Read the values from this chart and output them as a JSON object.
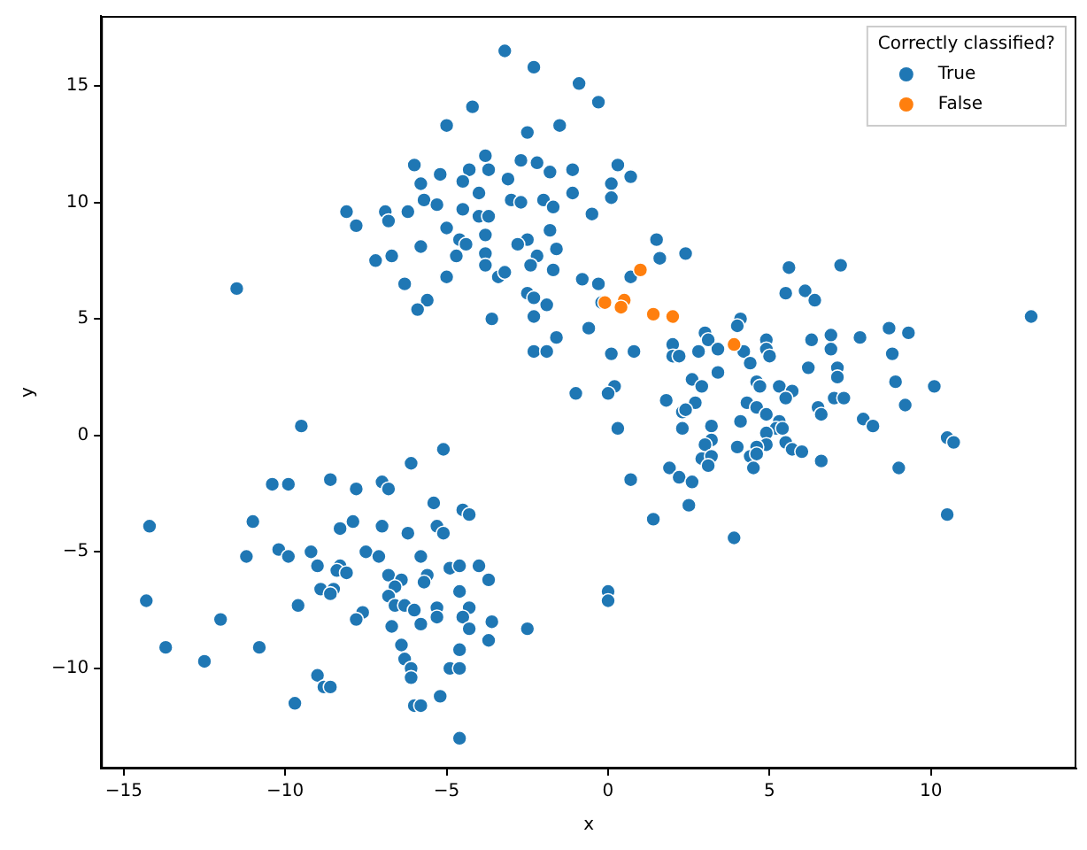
{
  "chart_data": {
    "type": "scatter",
    "xlabel": "x",
    "ylabel": "y",
    "legend_title": "Correctly classified?",
    "legend": "top right",
    "marker": "circle",
    "grid": false,
    "xlim": [
      -15.7,
      14.5
    ],
    "ylim": [
      -14.3,
      18.0
    ],
    "xticks": [
      -15,
      -10,
      -5,
      0,
      5,
      10
    ],
    "yticks": [
      -10,
      -5,
      0,
      5,
      10,
      15
    ],
    "series": [
      {
        "name": "True",
        "color": "#1f77b4",
        "x": [
          -3.2,
          -2.3,
          -0.9,
          -0.3,
          -4.2,
          -5.0,
          -2.5,
          -1.5,
          -3.8,
          -2.7,
          -2.2,
          -6.0,
          -5.2,
          -4.3,
          -3.7,
          -1.8,
          -1.1,
          0.3,
          0.7,
          -5.8,
          -4.5,
          -3.1,
          0.1,
          -4.0,
          -1.1,
          0.1,
          -5.7,
          -5.3,
          -3.0,
          -2.7,
          -2.0,
          -1.7,
          -8.1,
          -6.9,
          -6.8,
          -6.2,
          -4.5,
          -4.0,
          -3.7,
          -0.5,
          -7.8,
          -5.0,
          -3.8,
          -1.8,
          -4.6,
          -4.4,
          -5.8,
          -2.5,
          -2.8,
          -1.6,
          -7.2,
          -6.7,
          -4.7,
          -3.8,
          -2.2,
          -3.8,
          -2.4,
          -1.7,
          1.5,
          1.6,
          -5.0,
          -3.4,
          -3.2,
          -6.3,
          -0.8,
          -0.3,
          0.7,
          -2.5,
          -2.3,
          -1.9,
          -5.6,
          -5.9,
          -0.2,
          -2.3,
          -3.6,
          -0.6,
          -1.6,
          -2.3,
          -1.9,
          0.1,
          0.8,
          -11.5,
          2.4,
          5.6,
          7.2,
          5.5,
          6.1,
          6.4,
          13.1,
          4.1,
          4.0,
          3.0,
          3.1,
          2.0,
          3.4,
          4.2,
          4.9,
          4.9,
          5.0,
          6.3,
          6.9,
          6.9,
          7.8,
          8.7,
          9.3,
          8.8,
          2.0,
          2.2,
          2.8,
          4.4,
          6.2,
          7.1,
          7.1,
          2.6,
          2.9,
          3.4,
          4.6,
          4.7,
          5.3,
          5.7,
          5.5,
          8.9,
          10.1,
          -1.0,
          0.2,
          0.0,
          1.8,
          2.7,
          2.3,
          2.4,
          2.3,
          3.2,
          4.3,
          4.6,
          4.9,
          4.1,
          5.3,
          5.2,
          5.4,
          4.9,
          6.5,
          6.6,
          7.0,
          7.3,
          7.9,
          8.2,
          9.2,
          0.3,
          3.2,
          3.0,
          4.9,
          5.5,
          4.6,
          4.0,
          5.7,
          6.0,
          4.4,
          4.6,
          2.9,
          3.2,
          3.1,
          4.5,
          6.6,
          10.5,
          10.7,
          1.9,
          2.2,
          2.6,
          0.7,
          9.0,
          2.5,
          1.4,
          3.9,
          10.5,
          0.0,
          0.0,
          -9.5,
          -5.1,
          -6.1,
          -8.6,
          -10.4,
          -9.9,
          -7.0,
          -6.8,
          -7.8,
          -5.4,
          -4.5,
          -4.3,
          -14.2,
          -11.0,
          -7.9,
          -7.0,
          -8.3,
          -5.3,
          -5.1,
          -6.2,
          -10.2,
          -9.2,
          -7.5,
          -11.2,
          -9.9,
          -7.1,
          -5.8,
          -9.0,
          -8.3,
          -8.4,
          -8.1,
          -6.8,
          -5.6,
          -4.9,
          -4.6,
          -4.0,
          -3.7,
          -6.4,
          -6.6,
          -5.7,
          -8.9,
          -8.5,
          -8.6,
          -4.6,
          -6.8,
          -14.3,
          -9.6,
          -6.6,
          -6.3,
          -6.0,
          -5.3,
          -4.3,
          -5.3,
          -4.5,
          -12.0,
          -7.6,
          -7.8,
          -6.7,
          -5.8,
          -4.3,
          -3.6,
          -2.5,
          -3.7,
          -6.4,
          -13.7,
          -10.8,
          -6.3,
          -12.5,
          -4.6,
          -6.1,
          -4.9,
          -4.6,
          -6.1,
          -9.0,
          -8.8,
          -8.6,
          -5.2,
          -9.7,
          -6.0,
          -5.8,
          -4.6
        ],
        "values": [
          16.5,
          15.8,
          15.1,
          14.3,
          14.1,
          13.3,
          13.0,
          13.3,
          12.0,
          11.8,
          11.7,
          11.6,
          11.2,
          11.4,
          11.4,
          11.3,
          11.4,
          11.6,
          11.1,
          10.8,
          10.9,
          11.0,
          10.8,
          10.4,
          10.4,
          10.2,
          10.1,
          9.9,
          10.1,
          10.0,
          10.1,
          9.8,
          9.6,
          9.6,
          9.2,
          9.6,
          9.7,
          9.4,
          9.4,
          9.5,
          9.0,
          8.9,
          8.6,
          8.8,
          8.4,
          8.2,
          8.1,
          8.4,
          8.2,
          8.0,
          7.5,
          7.7,
          7.7,
          7.8,
          7.7,
          7.3,
          7.3,
          7.1,
          8.4,
          7.6,
          6.8,
          6.8,
          7.0,
          6.5,
          6.7,
          6.5,
          6.8,
          6.1,
          5.9,
          5.6,
          5.8,
          5.4,
          5.7,
          5.1,
          5.0,
          4.6,
          4.2,
          3.6,
          3.6,
          3.5,
          3.6,
          6.3,
          7.8,
          7.2,
          7.3,
          6.1,
          6.2,
          5.8,
          5.1,
          5.0,
          4.7,
          4.4,
          4.1,
          3.9,
          3.7,
          3.6,
          4.1,
          3.7,
          3.4,
          4.1,
          4.3,
          3.7,
          4.2,
          4.6,
          4.4,
          3.5,
          3.4,
          3.4,
          3.6,
          3.1,
          2.9,
          2.9,
          2.5,
          2.4,
          2.1,
          2.7,
          2.3,
          2.1,
          2.1,
          1.9,
          1.6,
          2.3,
          2.1,
          1.8,
          2.1,
          1.8,
          1.5,
          1.4,
          1.0,
          1.1,
          0.3,
          0.4,
          1.4,
          1.2,
          0.9,
          0.6,
          0.6,
          0.3,
          0.3,
          0.1,
          1.2,
          0.9,
          1.6,
          1.6,
          0.7,
          0.4,
          1.3,
          0.3,
          -0.2,
          -0.4,
          -0.4,
          -0.3,
          -0.5,
          -0.5,
          -0.6,
          -0.7,
          -0.9,
          -0.8,
          -1.0,
          -0.9,
          -1.3,
          -1.4,
          -1.1,
          -0.1,
          -0.3,
          -1.4,
          -1.8,
          -2.0,
          -1.9,
          -1.4,
          -3.0,
          -3.6,
          -4.4,
          -3.4,
          -6.7,
          -7.1,
          0.4,
          -0.6,
          -1.2,
          -1.9,
          -2.1,
          -2.1,
          -2.0,
          -2.3,
          -2.3,
          -2.9,
          -3.2,
          -3.4,
          -3.9,
          -3.7,
          -3.7,
          -3.9,
          -4.0,
          -3.9,
          -4.2,
          -4.2,
          -4.9,
          -5.0,
          -5.0,
          -5.2,
          -5.2,
          -5.2,
          -5.2,
          -5.6,
          -5.6,
          -5.8,
          -5.9,
          -6.0,
          -6.0,
          -5.7,
          -5.6,
          -5.6,
          -6.2,
          -6.2,
          -6.5,
          -6.3,
          -6.6,
          -6.6,
          -6.8,
          -6.7,
          -6.9,
          -7.1,
          -7.3,
          -7.3,
          -7.3,
          -7.5,
          -7.4,
          -7.4,
          -7.8,
          -7.8,
          -7.9,
          -7.6,
          -7.9,
          -8.2,
          -8.1,
          -8.3,
          -8.0,
          -8.3,
          -8.8,
          -9.0,
          -9.1,
          -9.1,
          -9.6,
          -9.7,
          -9.2,
          -10.0,
          -10.0,
          -10.0,
          -10.4,
          -10.3,
          -10.8,
          -10.8,
          -11.2,
          -11.5,
          -11.6,
          -11.6,
          -13.0
        ]
      },
      {
        "name": "False",
        "color": "#ff7f0e",
        "x": [
          1.0,
          -0.1,
          0.5,
          0.4,
          1.4,
          2.0,
          3.9
        ],
        "values": [
          7.1,
          5.7,
          5.8,
          5.5,
          5.2,
          5.1,
          3.9
        ]
      }
    ]
  }
}
